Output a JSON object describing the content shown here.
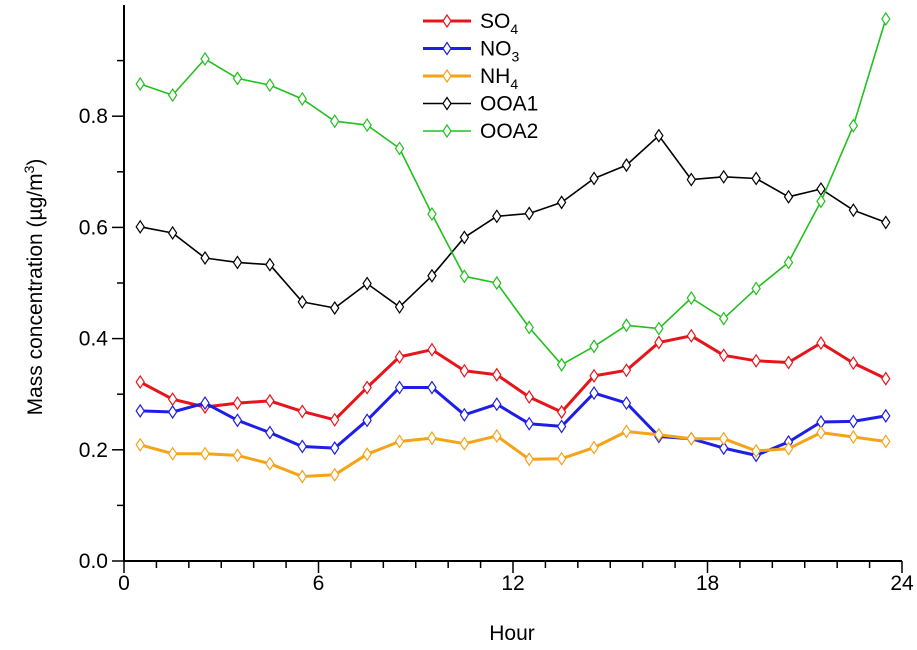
{
  "chart_data": {
    "type": "line",
    "xlabel": "Hour",
    "ylabel": "Mass concentration (µg/m³)",
    "ylabel_parts": {
      "main": "Mass concentration (µg/m",
      "sup": "3",
      "tail": ")"
    },
    "xlim": [
      0,
      24
    ],
    "ylim": [
      0,
      1.0
    ],
    "x_ticks": [
      0,
      6,
      12,
      18,
      24
    ],
    "x_tick_labels": [
      "0",
      "6",
      "12",
      "18",
      "24"
    ],
    "y_ticks": [
      0.0,
      0.2,
      0.4,
      0.6,
      0.8
    ],
    "y_tick_labels": [
      "0.0",
      "0.2",
      "0.4",
      "0.6",
      "0.8"
    ],
    "grid": false,
    "legend_position": "top-center",
    "x": [
      0.5,
      1.5,
      2.5,
      3.5,
      4.5,
      5.5,
      6.5,
      7.5,
      8.5,
      9.5,
      10.5,
      11.5,
      12.5,
      13.5,
      14.5,
      15.5,
      16.5,
      17.5,
      18.5,
      19.5,
      20.5,
      21.5,
      22.5,
      23.5
    ],
    "series": [
      {
        "name": "SO4",
        "label_main": "SO",
        "label_sub": "4",
        "color": "#e8141b",
        "values": [
          0.322,
          0.291,
          0.277,
          0.284,
          0.288,
          0.269,
          0.254,
          0.312,
          0.367,
          0.38,
          0.342,
          0.335,
          0.295,
          0.268,
          0.333,
          0.343,
          0.393,
          0.405,
          0.37,
          0.36,
          0.357,
          0.392,
          0.356,
          0.328
        ]
      },
      {
        "name": "NO3",
        "label_main": "NO",
        "label_sub": "3",
        "color": "#1e1ee6",
        "values": [
          0.27,
          0.268,
          0.284,
          0.253,
          0.231,
          0.206,
          0.203,
          0.253,
          0.312,
          0.312,
          0.263,
          0.282,
          0.247,
          0.242,
          0.302,
          0.284,
          0.224,
          0.22,
          0.203,
          0.19,
          0.214,
          0.25,
          0.251,
          0.261
        ]
      },
      {
        "name": "NH4",
        "label_main": "NH",
        "label_sub": "4",
        "color": "#f5a318",
        "values": [
          0.209,
          0.193,
          0.193,
          0.19,
          0.175,
          0.152,
          0.155,
          0.192,
          0.215,
          0.221,
          0.211,
          0.225,
          0.183,
          0.184,
          0.204,
          0.233,
          0.227,
          0.22,
          0.22,
          0.198,
          0.202,
          0.231,
          0.223,
          0.215
        ]
      },
      {
        "name": "OOA1",
        "label_main": "OOA1",
        "label_sub": "",
        "color": "#000000",
        "values": [
          0.601,
          0.59,
          0.545,
          0.537,
          0.533,
          0.466,
          0.455,
          0.499,
          0.457,
          0.513,
          0.582,
          0.62,
          0.625,
          0.645,
          0.688,
          0.712,
          0.765,
          0.686,
          0.691,
          0.688,
          0.655,
          0.669,
          0.631,
          0.609
        ]
      },
      {
        "name": "OOA2",
        "label_main": "OOA2",
        "label_sub": "",
        "color": "#22c01e",
        "values": [
          0.858,
          0.838,
          0.903,
          0.868,
          0.856,
          0.831,
          0.791,
          0.784,
          0.742,
          0.624,
          0.512,
          0.5,
          0.42,
          0.353,
          0.386,
          0.424,
          0.418,
          0.473,
          0.436,
          0.49,
          0.537,
          0.647,
          0.783,
          0.975
        ]
      }
    ]
  }
}
